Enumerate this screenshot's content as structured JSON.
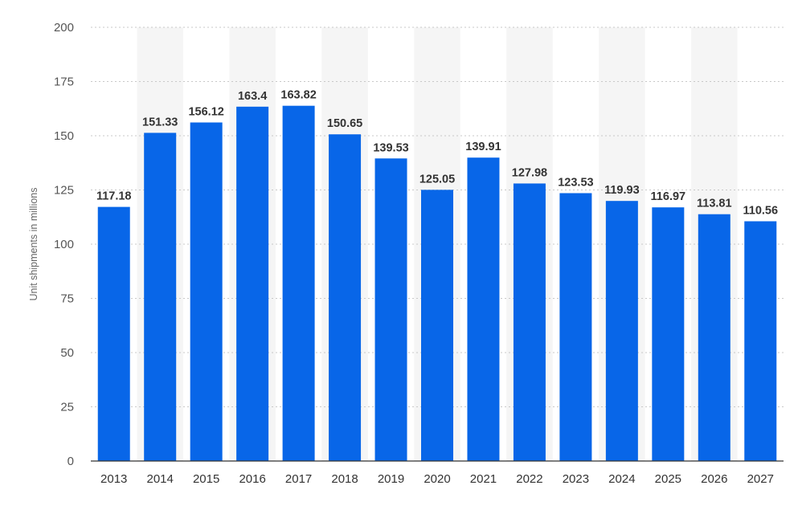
{
  "chart_data": {
    "type": "bar",
    "categories": [
      "2013",
      "2014",
      "2015",
      "2016",
      "2017",
      "2018",
      "2019",
      "2020",
      "2021",
      "2022",
      "2023",
      "2024",
      "2025",
      "2026",
      "2027"
    ],
    "values": [
      117.18,
      151.33,
      156.12,
      163.4,
      163.82,
      150.65,
      139.53,
      125.05,
      139.91,
      127.98,
      123.53,
      119.93,
      116.97,
      113.81,
      110.56
    ],
    "value_labels": [
      "117.18",
      "151.33",
      "156.12",
      "163.4",
      "163.82",
      "150.65",
      "139.53",
      "125.05",
      "139.91",
      "127.98",
      "123.53",
      "119.93",
      "116.97",
      "113.81",
      "110.56"
    ],
    "ylabel": "Unit shipments in millions",
    "xlabel": "",
    "ylim": [
      0,
      200
    ],
    "yticks": [
      0,
      25,
      50,
      75,
      100,
      125,
      150,
      175,
      200
    ],
    "ytick_labels": [
      "0",
      "25",
      "50",
      "75",
      "100",
      "125",
      "150",
      "175",
      "200"
    ],
    "grid": true,
    "bar_color": "#0866e8",
    "band_color": "#f5f5f5"
  }
}
